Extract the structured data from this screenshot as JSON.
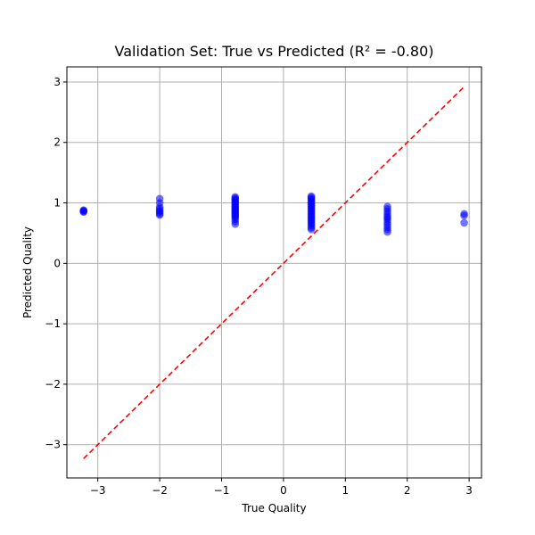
{
  "chart_data": {
    "type": "scatter",
    "title": "Validation Set: True vs Predicted (R² = -0.80)",
    "xlabel": "True Quality",
    "ylabel": "Predicted Quality",
    "xlim": [
      -3.5,
      3.2
    ],
    "ylim": [
      -3.55,
      3.25
    ],
    "xticks": [
      -3,
      -2,
      -1,
      0,
      1,
      2,
      3
    ],
    "yticks": [
      -3,
      -2,
      -1,
      0,
      1,
      2,
      3
    ],
    "grid": true,
    "colors": {
      "points": "#0000ff",
      "reference_line": "#ff0000"
    },
    "reference_line": {
      "x": [
        -3.23,
        2.92
      ],
      "y": [
        -3.23,
        2.92
      ],
      "style": "dashed"
    },
    "clusters": [
      {
        "x": -3.23,
        "y": [
          0.86,
          0.87,
          0.88,
          0.85
        ]
      },
      {
        "x": -2.0,
        "y": [
          1.07,
          1.0,
          0.93,
          0.9,
          0.87,
          0.85,
          0.82,
          0.8
        ]
      },
      {
        "x": -0.78,
        "y": [
          1.1,
          1.08,
          1.06,
          1.04,
          1.02,
          1.0,
          0.98,
          0.96,
          0.94,
          0.92,
          0.9,
          0.88,
          0.86,
          0.84,
          0.82,
          0.8,
          0.78,
          0.76,
          0.73,
          0.69,
          0.65
        ]
      },
      {
        "x": 0.45,
        "y": [
          1.11,
          1.09,
          1.07,
          1.05,
          1.02,
          1.0,
          0.97,
          0.95,
          0.92,
          0.9,
          0.87,
          0.85,
          0.82,
          0.8,
          0.77,
          0.75,
          0.72,
          0.7,
          0.67,
          0.65,
          0.62,
          0.59,
          0.56
        ]
      },
      {
        "x": 1.68,
        "y": [
          0.94,
          0.9,
          0.86,
          0.82,
          0.78,
          0.75,
          0.72,
          0.68,
          0.64,
          0.6,
          0.56,
          0.52
        ]
      },
      {
        "x": 2.92,
        "y": [
          0.82,
          0.79,
          0.67
        ]
      }
    ]
  }
}
